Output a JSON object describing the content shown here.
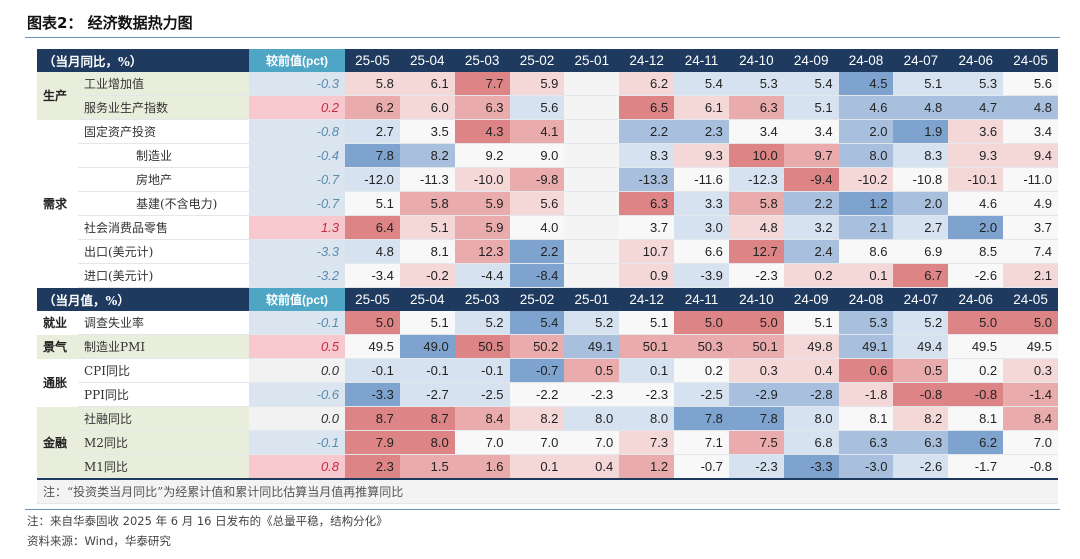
{
  "title": "图表2： 经济数据热力图",
  "colors": {
    "header": "#1f3a5f",
    "prev_header": "#4ea6c4",
    "group_bg": "#e9eedc",
    "prev_pos_bg": "#f8c8cf",
    "prev_neg_bg": "#dae5f0",
    "prev_zero_bg": "#f2f2f2",
    "prev_pos_text": "#c23040",
    "prev_neg_text": "#5a8cb0",
    "heat": {
      "-3": "#7fa3cf",
      "-2": "#a8c0de",
      "-1": "#d6e2ef",
      "0": "#f8f8f8",
      "1": "#f4d7d7",
      "2": "#e9abab",
      "3": "#dc8486"
    }
  },
  "chart_data": {
    "type": "heatmap",
    "columns": [
      "25-05",
      "25-04",
      "25-03",
      "25-02",
      "25-01",
      "24-12",
      "24-11",
      "24-10",
      "24-09",
      "24-08",
      "24-07",
      "24-06",
      "24-05"
    ],
    "sections": [
      {
        "header": "（当月同比，%）",
        "prev_header": "较前值(pct)",
        "groups": [
          {
            "label": "生产",
            "shaded": true,
            "rows": [
              {
                "name": "工业增加值",
                "indent": false,
                "prev": "-0.3",
                "values": [
                  "5.8",
                  "6.1",
                  "7.7",
                  "5.9",
                  "",
                  "6.2",
                  "5.4",
                  "5.3",
                  "5.4",
                  "4.5",
                  "5.1",
                  "5.3",
                  "5.6"
                ],
                "heat": [
                  1,
                  1,
                  3,
                  1,
                  null,
                  1,
                  -1,
                  -1,
                  -1,
                  -3,
                  -1,
                  -1,
                  0
                ]
              },
              {
                "name": "服务业生产指数",
                "indent": false,
                "prev": "0.2",
                "values": [
                  "6.2",
                  "6.0",
                  "6.3",
                  "5.6",
                  "",
                  "6.5",
                  "6.1",
                  "6.3",
                  "5.1",
                  "4.6",
                  "4.8",
                  "4.7",
                  "4.8"
                ],
                "heat": [
                  2,
                  1,
                  2,
                  -1,
                  null,
                  3,
                  1,
                  2,
                  -1,
                  -2,
                  -2,
                  -2,
                  -2
                ]
              }
            ]
          },
          {
            "label": "需求",
            "shaded": false,
            "rows": [
              {
                "name": "固定资产投资",
                "indent": false,
                "prev": "-0.8",
                "values": [
                  "2.7",
                  "3.5",
                  "4.3",
                  "4.1",
                  "",
                  "2.2",
                  "2.3",
                  "3.4",
                  "3.4",
                  "2.0",
                  "1.9",
                  "3.6",
                  "3.4"
                ],
                "heat": [
                  -1,
                  0,
                  3,
                  2,
                  null,
                  -2,
                  -2,
                  0,
                  0,
                  -2,
                  -3,
                  1,
                  0
                ]
              },
              {
                "name": "制造业",
                "indent": true,
                "prev": "-0.4",
                "values": [
                  "7.8",
                  "8.2",
                  "9.2",
                  "9.0",
                  "",
                  "8.3",
                  "9.3",
                  "10.0",
                  "9.7",
                  "8.0",
                  "8.3",
                  "9.3",
                  "9.4"
                ],
                "heat": [
                  -3,
                  -2,
                  0,
                  0,
                  null,
                  -1,
                  1,
                  3,
                  2,
                  -2,
                  -1,
                  1,
                  1
                ]
              },
              {
                "name": "房地产",
                "indent": true,
                "prev": "-0.7",
                "values": [
                  "-12.0",
                  "-11.3",
                  "-10.0",
                  "-9.8",
                  "",
                  "-13.3",
                  "-11.6",
                  "-12.3",
                  "-9.4",
                  "-10.2",
                  "-10.8",
                  "-10.1",
                  "-11.0"
                ],
                "heat": [
                  -1,
                  0,
                  1,
                  2,
                  null,
                  -2,
                  0,
                  -1,
                  3,
                  1,
                  0,
                  1,
                  0
                ]
              },
              {
                "name": "基建(不含电力)",
                "indent": true,
                "prev": "-0.7",
                "values": [
                  "5.1",
                  "5.8",
                  "5.9",
                  "5.6",
                  "",
                  "6.3",
                  "3.3",
                  "5.8",
                  "2.2",
                  "1.2",
                  "2.0",
                  "4.6",
                  "4.9"
                ],
                "heat": [
                  0,
                  2,
                  2,
                  1,
                  null,
                  3,
                  -1,
                  2,
                  -2,
                  -3,
                  -2,
                  0,
                  0
                ]
              },
              {
                "name": "社会消费品零售",
                "indent": false,
                "prev": "1.3",
                "values": [
                  "6.4",
                  "5.1",
                  "5.9",
                  "4.0",
                  "",
                  "3.7",
                  "3.0",
                  "4.8",
                  "3.2",
                  "2.1",
                  "2.7",
                  "2.0",
                  "3.7"
                ],
                "heat": [
                  3,
                  1,
                  2,
                  0,
                  null,
                  0,
                  -1,
                  1,
                  -1,
                  -2,
                  -1,
                  -3,
                  0
                ]
              },
              {
                "name": "出口(美元计)",
                "indent": false,
                "prev": "-3.3",
                "values": [
                  "4.8",
                  "8.1",
                  "12.3",
                  "2.2",
                  "",
                  "10.7",
                  "6.6",
                  "12.7",
                  "2.4",
                  "8.6",
                  "6.9",
                  "8.5",
                  "7.4"
                ],
                "heat": [
                  -1,
                  0,
                  2,
                  -3,
                  null,
                  1,
                  0,
                  3,
                  -2,
                  0,
                  0,
                  0,
                  0
                ]
              },
              {
                "name": "进口(美元计)",
                "indent": false,
                "prev": "-3.2",
                "values": [
                  "-3.4",
                  "-0.2",
                  "-4.4",
                  "-8.4",
                  "",
                  "0.9",
                  "-3.9",
                  "-2.3",
                  "0.2",
                  "0.1",
                  "6.7",
                  "-2.6",
                  "2.1"
                ],
                "heat": [
                  0,
                  1,
                  -1,
                  -3,
                  null,
                  1,
                  -1,
                  0,
                  1,
                  1,
                  3,
                  0,
                  1
                ]
              }
            ]
          }
        ]
      },
      {
        "header": "（当月值，%）",
        "prev_header": "较前值(pct)",
        "groups": [
          {
            "label": "就业",
            "shaded": false,
            "rows": [
              {
                "name": "调查失业率",
                "indent": false,
                "prev": "-0.1",
                "values": [
                  "5.0",
                  "5.1",
                  "5.2",
                  "5.4",
                  "5.2",
                  "5.1",
                  "5.0",
                  "5.0",
                  "5.1",
                  "5.3",
                  "5.2",
                  "5.0",
                  "5.0"
                ],
                "heat": [
                  3,
                  0,
                  -1,
                  -3,
                  -1,
                  0,
                  3,
                  3,
                  0,
                  -2,
                  -1,
                  3,
                  3
                ]
              }
            ]
          },
          {
            "label": "景气",
            "shaded": true,
            "rows": [
              {
                "name": "制造业PMI",
                "indent": false,
                "prev": "0.5",
                "values": [
                  "49.5",
                  "49.0",
                  "50.5",
                  "50.2",
                  "49.1",
                  "50.1",
                  "50.3",
                  "50.1",
                  "49.8",
                  "49.1",
                  "49.4",
                  "49.5",
                  "49.5"
                ],
                "heat": [
                  0,
                  -3,
                  3,
                  2,
                  -2,
                  2,
                  2,
                  2,
                  1,
                  -2,
                  -1,
                  0,
                  0
                ]
              }
            ]
          },
          {
            "label": "通胀",
            "shaded": false,
            "rows": [
              {
                "name": "CPI同比",
                "indent": false,
                "prev": "0.0",
                "values": [
                  "-0.1",
                  "-0.1",
                  "-0.1",
                  "-0.7",
                  "0.5",
                  "0.1",
                  "0.2",
                  "0.3",
                  "0.4",
                  "0.6",
                  "0.5",
                  "0.2",
                  "0.3"
                ],
                "heat": [
                  -1,
                  -1,
                  -1,
                  -3,
                  2,
                  -1,
                  0,
                  1,
                  1,
                  3,
                  2,
                  0,
                  1
                ]
              },
              {
                "name": "PPI同比",
                "indent": false,
                "prev": "-0.6",
                "values": [
                  "-3.3",
                  "-2.7",
                  "-2.5",
                  "-2.2",
                  "-2.3",
                  "-2.3",
                  "-2.5",
                  "-2.9",
                  "-2.8",
                  "-1.8",
                  "-0.8",
                  "-0.8",
                  "-1.4"
                ],
                "heat": [
                  -3,
                  -1,
                  -1,
                  0,
                  0,
                  0,
                  -1,
                  -2,
                  -2,
                  1,
                  3,
                  3,
                  2
                ]
              }
            ]
          },
          {
            "label": "金融",
            "shaded": true,
            "rows": [
              {
                "name": "社融同比",
                "indent": false,
                "prev": "0.0",
                "values": [
                  "8.7",
                  "8.7",
                  "8.4",
                  "8.2",
                  "8.0",
                  "8.0",
                  "7.8",
                  "7.8",
                  "8.0",
                  "8.1",
                  "8.2",
                  "8.1",
                  "8.4"
                ],
                "heat": [
                  3,
                  3,
                  2,
                  1,
                  -1,
                  -1,
                  -3,
                  -3,
                  -1,
                  0,
                  1,
                  0,
                  2
                ]
              },
              {
                "name": "M2同比",
                "indent": false,
                "prev": "-0.1",
                "values": [
                  "7.9",
                  "8.0",
                  "7.0",
                  "7.0",
                  "7.0",
                  "7.3",
                  "7.1",
                  "7.5",
                  "6.8",
                  "6.3",
                  "6.3",
                  "6.2",
                  "7.0"
                ],
                "heat": [
                  3,
                  3,
                  0,
                  0,
                  0,
                  1,
                  0,
                  2,
                  -1,
                  -2,
                  -2,
                  -3,
                  0
                ]
              },
              {
                "name": "M1同比",
                "indent": false,
                "prev": "0.8",
                "values": [
                  "2.3",
                  "1.5",
                  "1.6",
                  "0.1",
                  "0.4",
                  "1.2",
                  "-0.7",
                  "-2.3",
                  "-3.3",
                  "-3.0",
                  "-2.6",
                  "-1.7",
                  "-0.8"
                ],
                "heat": [
                  3,
                  2,
                  2,
                  1,
                  1,
                  2,
                  0,
                  -1,
                  -3,
                  -2,
                  -1,
                  0,
                  0
                ]
              }
            ]
          }
        ]
      }
    ],
    "table_note": "注：“投资类当月同比”为经累计值和累计同比估算当月值再推算同比"
  },
  "footer": {
    "note": "注：来自华泰固收 2025 年 6 月 16 日发布的《总量平稳，结构分化》",
    "source": "资料来源：Wind，华泰研究"
  }
}
